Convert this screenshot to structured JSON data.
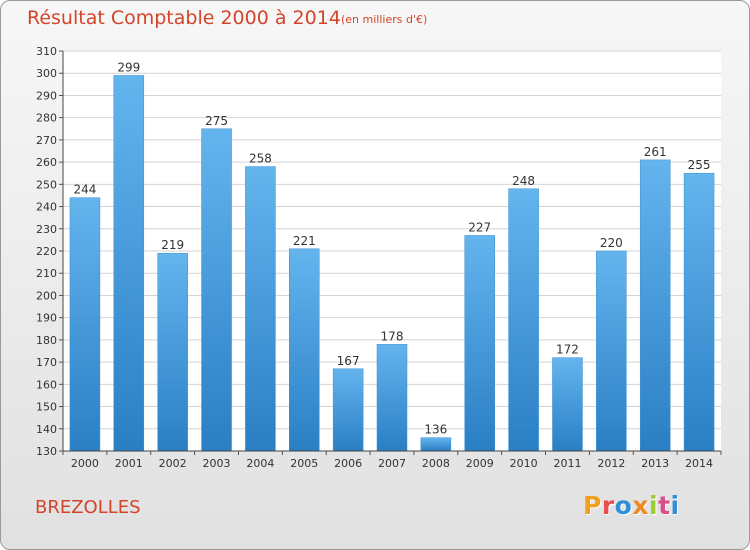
{
  "header": {
    "title": "Résultat Comptable 2000 à 2014",
    "unit": "(en milliers d'€)"
  },
  "footer": {
    "commune": "BREZOLLES",
    "logo": "Proxiti",
    "logo_colors": [
      "#f0a020",
      "#e85050",
      "#2f8fd8",
      "#f08a20",
      "#9acd32",
      "#d94f8a",
      "#2f8fd8"
    ]
  },
  "colors": {
    "bar_light": "#64b4ee",
    "bar_dark": "#2a7fc4",
    "accent_text": "#d2452a",
    "plot_background": "#ffffff"
  },
  "chart_data": {
    "type": "bar",
    "categories": [
      "2000",
      "2001",
      "2002",
      "2003",
      "2004",
      "2005",
      "2006",
      "2007",
      "2008",
      "2009",
      "2010",
      "2011",
      "2012",
      "2013",
      "2014"
    ],
    "values": [
      244,
      299,
      219,
      275,
      258,
      221,
      167,
      178,
      136,
      227,
      248,
      172,
      220,
      261,
      255
    ],
    "ylim": [
      130,
      310
    ],
    "ytick_step": 10,
    "grid": true,
    "data_labels": true
  }
}
